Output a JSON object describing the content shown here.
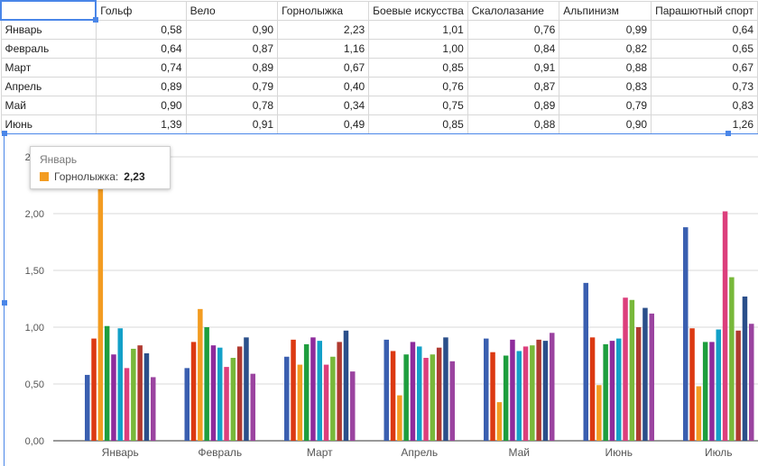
{
  "sheet": {
    "headers": [
      "Гольф",
      "Вело",
      "Горнолыжка",
      "Боевые искусства",
      "Скалолазание",
      "Альпинизм",
      "Парашютный спорт"
    ],
    "rows": [
      {
        "label": "Январь",
        "values": [
          "0,58",
          "0,90",
          "2,23",
          "1,01",
          "0,76",
          "0,99",
          "0,64"
        ]
      },
      {
        "label": "Февраль",
        "values": [
          "0,64",
          "0,87",
          "1,16",
          "1,00",
          "0,84",
          "0,82",
          "0,65"
        ]
      },
      {
        "label": "Март",
        "values": [
          "0,74",
          "0,89",
          "0,67",
          "0,85",
          "0,91",
          "0,88",
          "0,67"
        ]
      },
      {
        "label": "Апрель",
        "values": [
          "0,89",
          "0,79",
          "0,40",
          "0,76",
          "0,87",
          "0,83",
          "0,73"
        ]
      },
      {
        "label": "Май",
        "values": [
          "0,90",
          "0,78",
          "0,34",
          "0,75",
          "0,89",
          "0,79",
          "0,83"
        ]
      },
      {
        "label": "Июнь",
        "values": [
          "1,39",
          "0,91",
          "0,49",
          "0,85",
          "0,88",
          "0,90",
          "1,26"
        ]
      }
    ]
  },
  "tooltip": {
    "title": "Январь",
    "series": "Горнолыжка:",
    "value": "2,23",
    "color": "#f39c21"
  },
  "chart_data": {
    "type": "bar",
    "categories": [
      "Январь",
      "Февраль",
      "Март",
      "Апрель",
      "Май",
      "Июнь",
      "Июль"
    ],
    "yticks": [
      "0,00",
      "0,50",
      "1,00",
      "1,50",
      "2,00",
      "2,50"
    ],
    "ylim": [
      0,
      2.5
    ],
    "grid": true,
    "legend": "none",
    "series": [
      {
        "name": "Гольф",
        "color": "#3a5fb0",
        "values": [
          0.58,
          0.64,
          0.74,
          0.89,
          0.9,
          1.39,
          1.88
        ]
      },
      {
        "name": "Вело",
        "color": "#dc3912",
        "values": [
          0.9,
          0.87,
          0.89,
          0.79,
          0.78,
          0.91,
          0.99
        ]
      },
      {
        "name": "Горнолыжка",
        "color": "#f39c21",
        "values": [
          2.23,
          1.16,
          0.67,
          0.4,
          0.34,
          0.49,
          0.48
        ]
      },
      {
        "name": "Боевые искусства",
        "color": "#1e9e3e",
        "values": [
          1.01,
          1.0,
          0.85,
          0.76,
          0.75,
          0.85,
          0.87
        ]
      },
      {
        "name": "Скалолазание",
        "color": "#8e2b9c",
        "values": [
          0.76,
          0.84,
          0.91,
          0.87,
          0.89,
          0.88,
          0.87
        ]
      },
      {
        "name": "Альпинизм",
        "color": "#13a0c8",
        "values": [
          0.99,
          0.82,
          0.88,
          0.83,
          0.79,
          0.9,
          0.98
        ]
      },
      {
        "name": "Парашютный спорт",
        "color": "#dc3f7c",
        "values": [
          0.64,
          0.65,
          0.67,
          0.73,
          0.83,
          1.26,
          2.02
        ]
      },
      {
        "name": "",
        "color": "#78b83a",
        "values": [
          0.81,
          0.73,
          0.74,
          0.76,
          0.84,
          1.24,
          1.44
        ]
      },
      {
        "name": "",
        "color": "#b03a30",
        "values": [
          0.84,
          0.83,
          0.87,
          0.82,
          0.89,
          1.0,
          0.97
        ]
      },
      {
        "name": "",
        "color": "#2b4f8a",
        "values": [
          0.77,
          0.91,
          0.97,
          0.91,
          0.88,
          1.17,
          1.27
        ]
      },
      {
        "name": "",
        "color": "#9b44a0",
        "values": [
          0.56,
          0.59,
          0.61,
          0.7,
          0.95,
          1.12,
          1.03
        ]
      }
    ]
  }
}
